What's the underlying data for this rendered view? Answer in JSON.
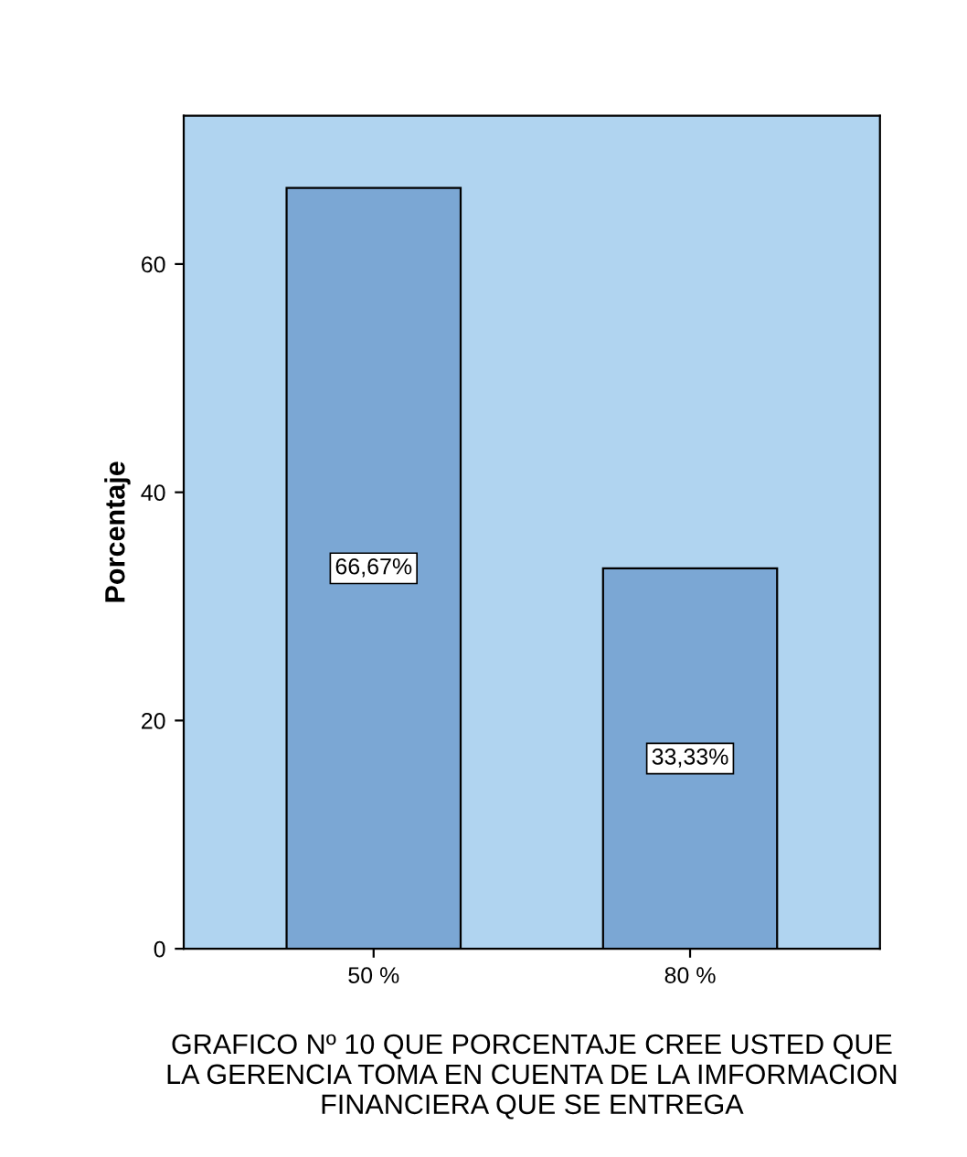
{
  "chart_data": {
    "type": "bar",
    "xlabel": "GRAFICO Nº 10 QUE PORCENTAJE CREE USTED QUE\nLA GERENCIA TOMA EN CUENTA DE LA IMFORMACION\nFINANCIERA QUE SE ENTREGA",
    "ylabel": "Porcentaje",
    "categories": [
      "50 %",
      "80 %"
    ],
    "values": [
      66.67,
      33.33
    ],
    "value_labels": [
      "66,67%",
      "33,33%"
    ],
    "color": "#7ba7d4",
    "ylim": [
      0,
      73
    ],
    "yticks": [
      0,
      20,
      40,
      60
    ],
    "grid": false
  }
}
